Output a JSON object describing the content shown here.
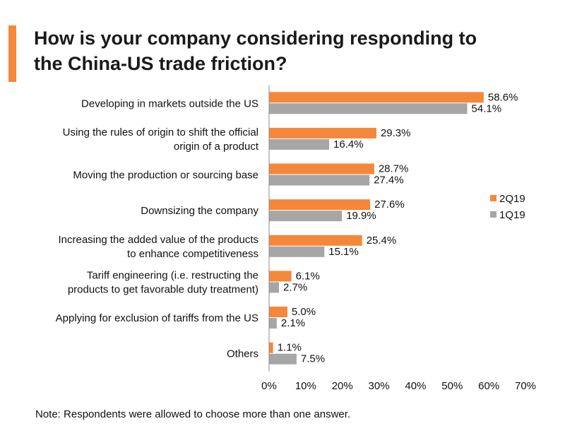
{
  "title_lines": [
    "How is your company considering responding to",
    "the China-US trade friction?"
  ],
  "note": "Note: Respondents were allowed to choose more than one answer.",
  "colors": {
    "accent": "#f5873b",
    "series_2Q19": "#f5873b",
    "series_1Q19": "#a6a6a6"
  },
  "chart_data": {
    "type": "bar",
    "orientation": "horizontal",
    "categories": [
      [
        "Developing in markets outside the US"
      ],
      [
        "Using the rules of origin to shift the official",
        "origin of a product"
      ],
      [
        "Moving the production or sourcing base"
      ],
      [
        "Downsizing the company"
      ],
      [
        "Increasing the added value of the products",
        "to enhance competitiveness"
      ],
      [
        "Tariff engineering (i.e. restructing the",
        "products to get favorable duty treatment)"
      ],
      [
        "Applying for exclusion of tariffs from the US"
      ],
      [
        "Others"
      ]
    ],
    "series": [
      {
        "name": "2Q19",
        "color": "#f5873b",
        "values": [
          58.6,
          29.3,
          28.7,
          27.6,
          25.4,
          6.1,
          5.0,
          1.1
        ]
      },
      {
        "name": "1Q19",
        "color": "#a6a6a6",
        "values": [
          54.1,
          16.4,
          27.4,
          19.9,
          15.1,
          2.7,
          2.1,
          7.5
        ]
      }
    ],
    "xlim": [
      0,
      70
    ],
    "xticks": [
      0,
      10,
      20,
      30,
      40,
      50,
      60,
      70
    ],
    "value_suffix": "%",
    "legend_position": "right"
  }
}
